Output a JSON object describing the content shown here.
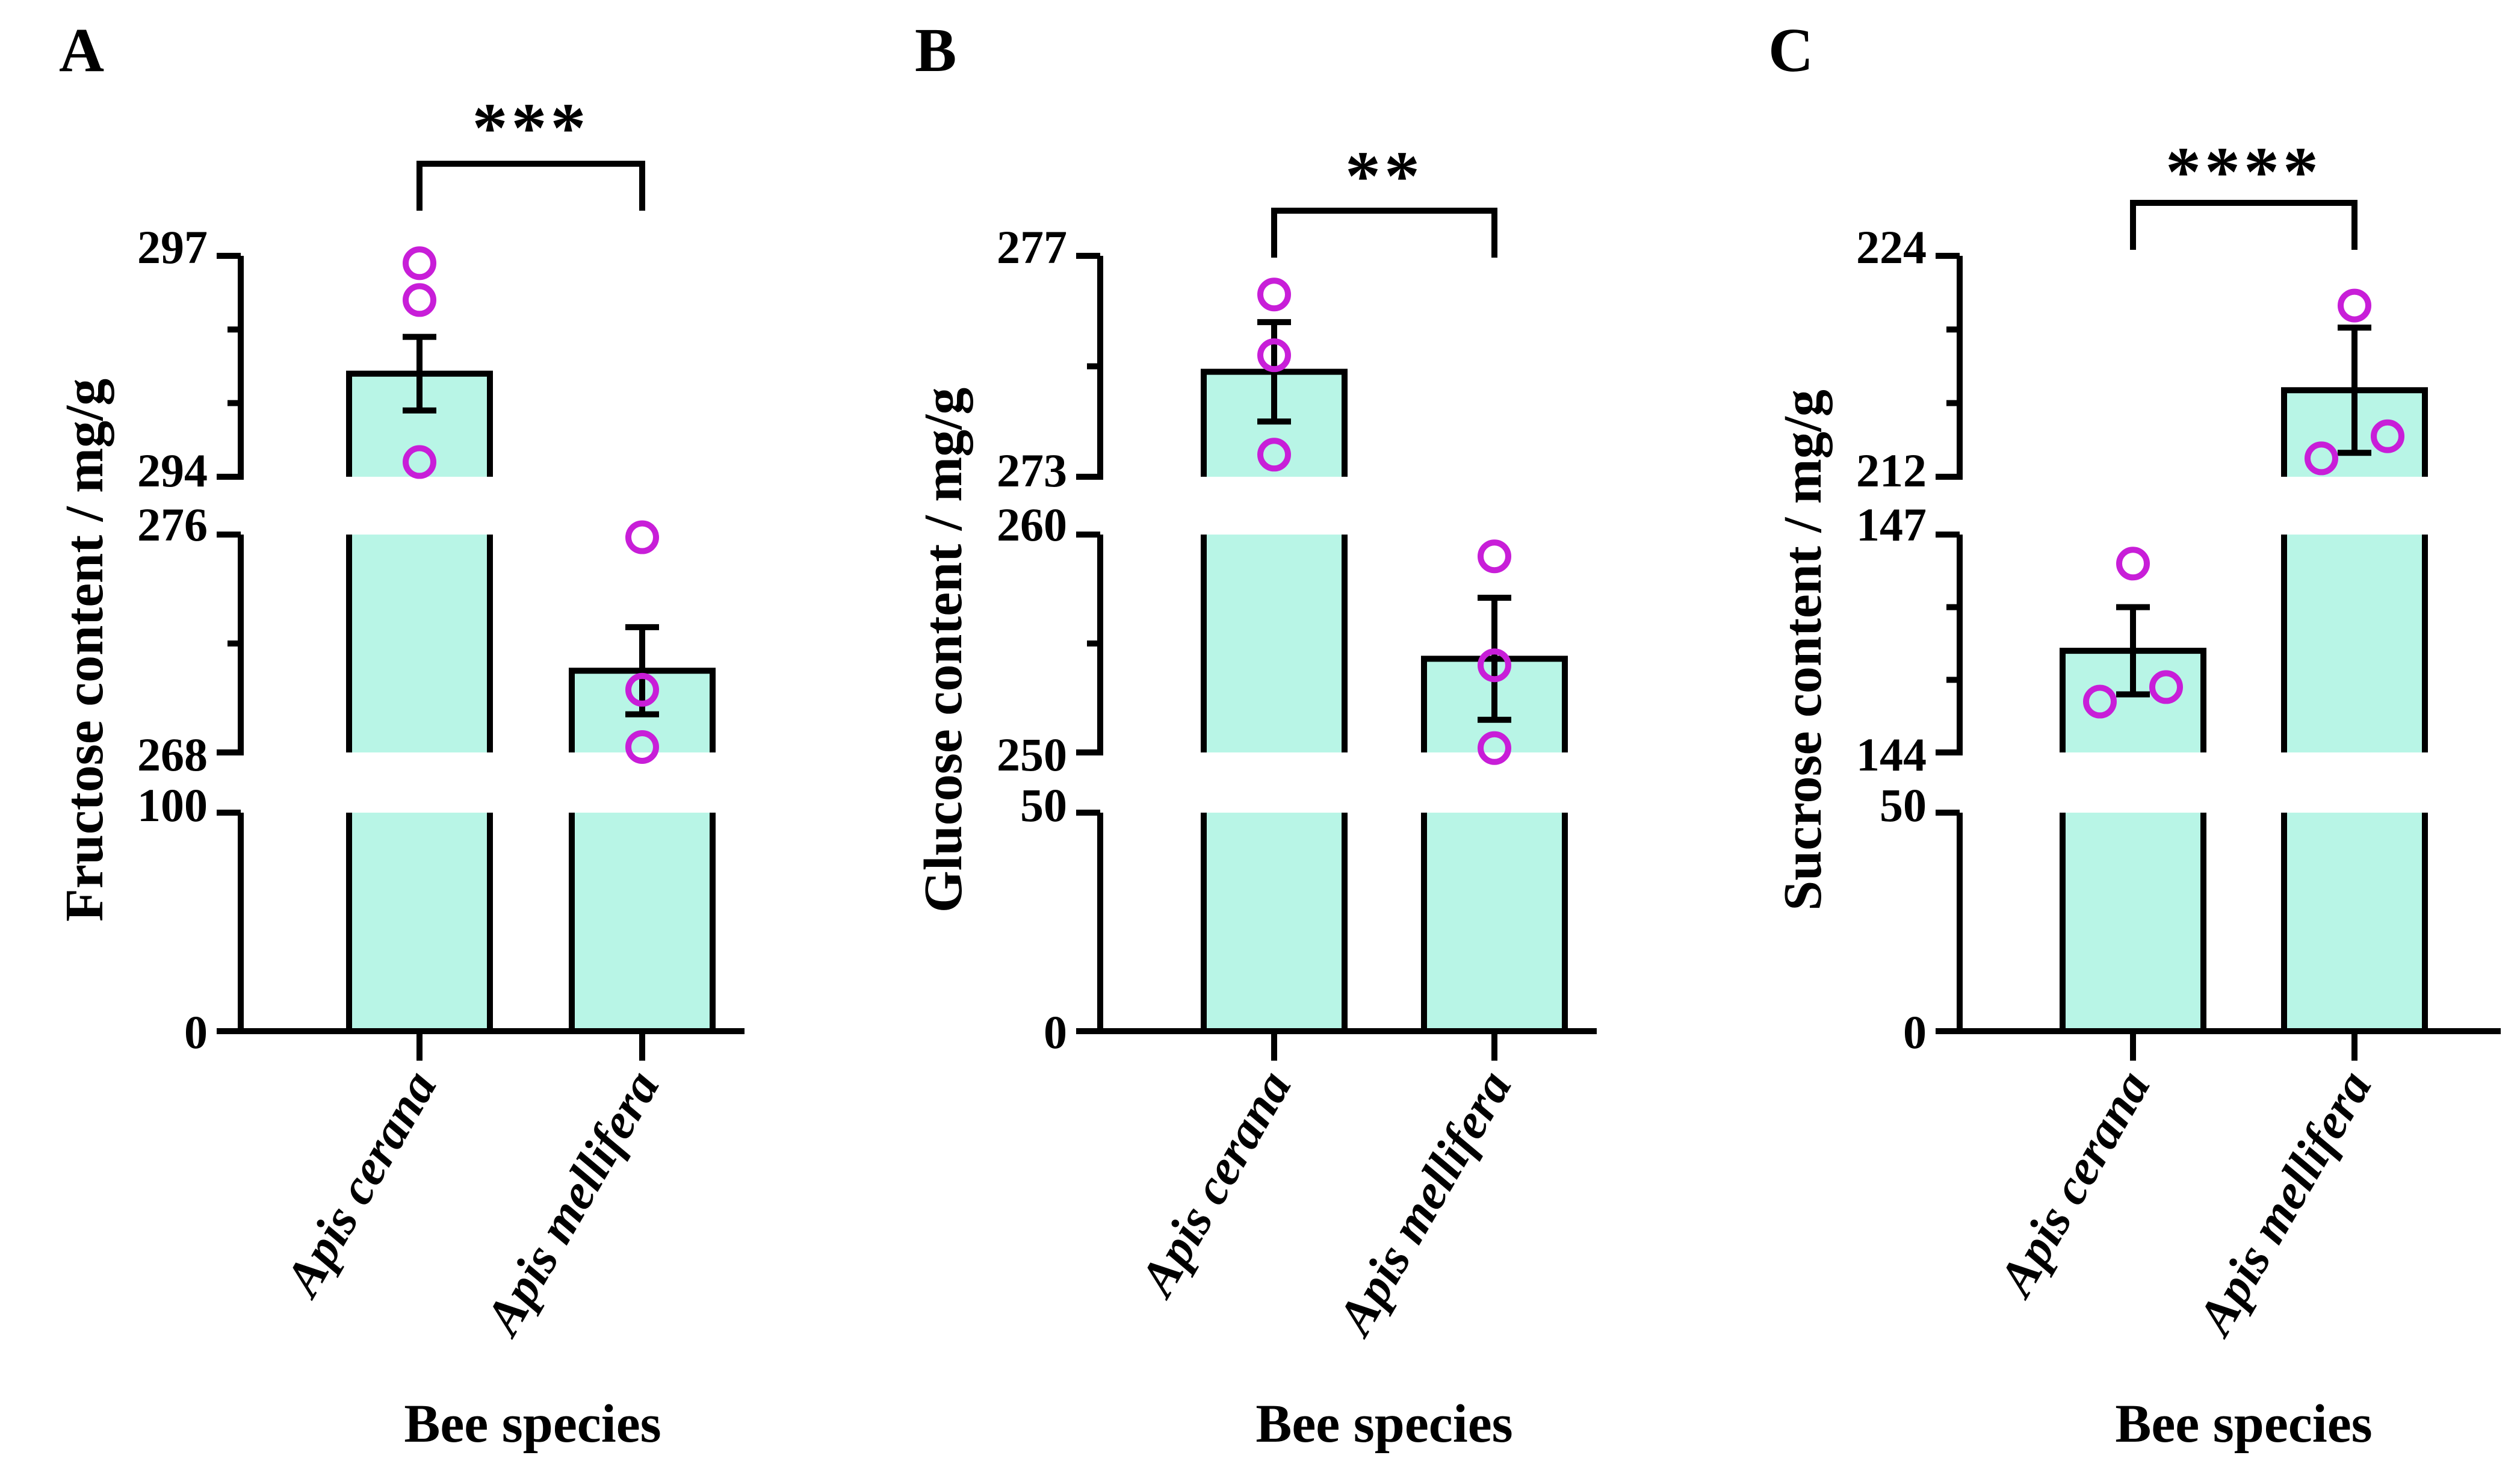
{
  "chart_data": [
    {
      "panel": "A",
      "type": "bar",
      "ylabel": "Fructose content / mg/g",
      "xlabel": "Bee species",
      "categories": [
        "Apis cerana",
        "Apis mellifera"
      ],
      "values": [
        295.4,
        271.0
      ],
      "sem": [
        0.5,
        1.6
      ],
      "points": [
        [
          296.9,
          296.4,
          294.2
        ],
        [
          275.9,
          270.3,
          268.2
        ]
      ],
      "significance": "***",
      "y_segments": [
        {
          "range": [
            0,
            100
          ],
          "ticks": [
            0,
            100
          ],
          "minor_ticks": []
        },
        {
          "range": [
            268,
            276
          ],
          "ticks": [
            268,
            276
          ],
          "minor_ticks": [
            272
          ]
        },
        {
          "range": [
            294,
            297
          ],
          "ticks": [
            294,
            297
          ],
          "minor_ticks": [
            295,
            296
          ]
        }
      ],
      "tick_labels": [
        "0",
        "100",
        "268",
        "276",
        "294",
        "297"
      ]
    },
    {
      "panel": "B",
      "type": "bar",
      "ylabel": "Glucose content / mg/g",
      "xlabel": "Bee species",
      "categories": [
        "Apis cerana",
        "Apis mellifera"
      ],
      "values": [
        274.9,
        254.3
      ],
      "sem": [
        0.9,
        2.8
      ],
      "points": [
        [
          276.3,
          275.2,
          273.4
        ],
        [
          259.0,
          254.0,
          250.2
        ]
      ],
      "significance": "**",
      "y_segments": [
        {
          "range": [
            0,
            50
          ],
          "ticks": [
            0,
            50
          ],
          "minor_ticks": []
        },
        {
          "range": [
            250,
            260
          ],
          "ticks": [
            250,
            260
          ],
          "minor_ticks": [
            255
          ]
        },
        {
          "range": [
            273,
            277
          ],
          "ticks": [
            273,
            277
          ],
          "minor_ticks": [
            275
          ]
        }
      ],
      "tick_labels": [
        "0",
        "50",
        "250",
        "260",
        "273",
        "277"
      ]
    },
    {
      "panel": "C",
      "type": "bar",
      "ylabel": "Sucrose content / mg/g",
      "xlabel": "Bee species",
      "categories": [
        "Apis cerana",
        "Apis mellifera"
      ],
      "values": [
        145.4,
        216.7
      ],
      "sem": [
        0.6,
        3.4
      ],
      "points": [
        [
          146.6,
          144.7,
          144.9
        ],
        [
          221.3,
          213.0,
          214.2
        ]
      ],
      "significance": "****",
      "y_segments": [
        {
          "range": [
            0,
            50
          ],
          "ticks": [
            0,
            50
          ],
          "minor_ticks": []
        },
        {
          "range": [
            144,
            147
          ],
          "ticks": [
            144,
            147
          ],
          "minor_ticks": [
            145,
            146
          ]
        },
        {
          "range": [
            212,
            224
          ],
          "ticks": [
            212,
            224
          ],
          "minor_ticks": [
            216,
            220
          ]
        }
      ],
      "tick_labels": [
        "0",
        "50",
        "144",
        "147",
        "212",
        "224"
      ]
    }
  ],
  "colors": {
    "bar_fill": "#b8f5e6",
    "point_stroke": "#c81ed8",
    "axis": "#000000"
  }
}
